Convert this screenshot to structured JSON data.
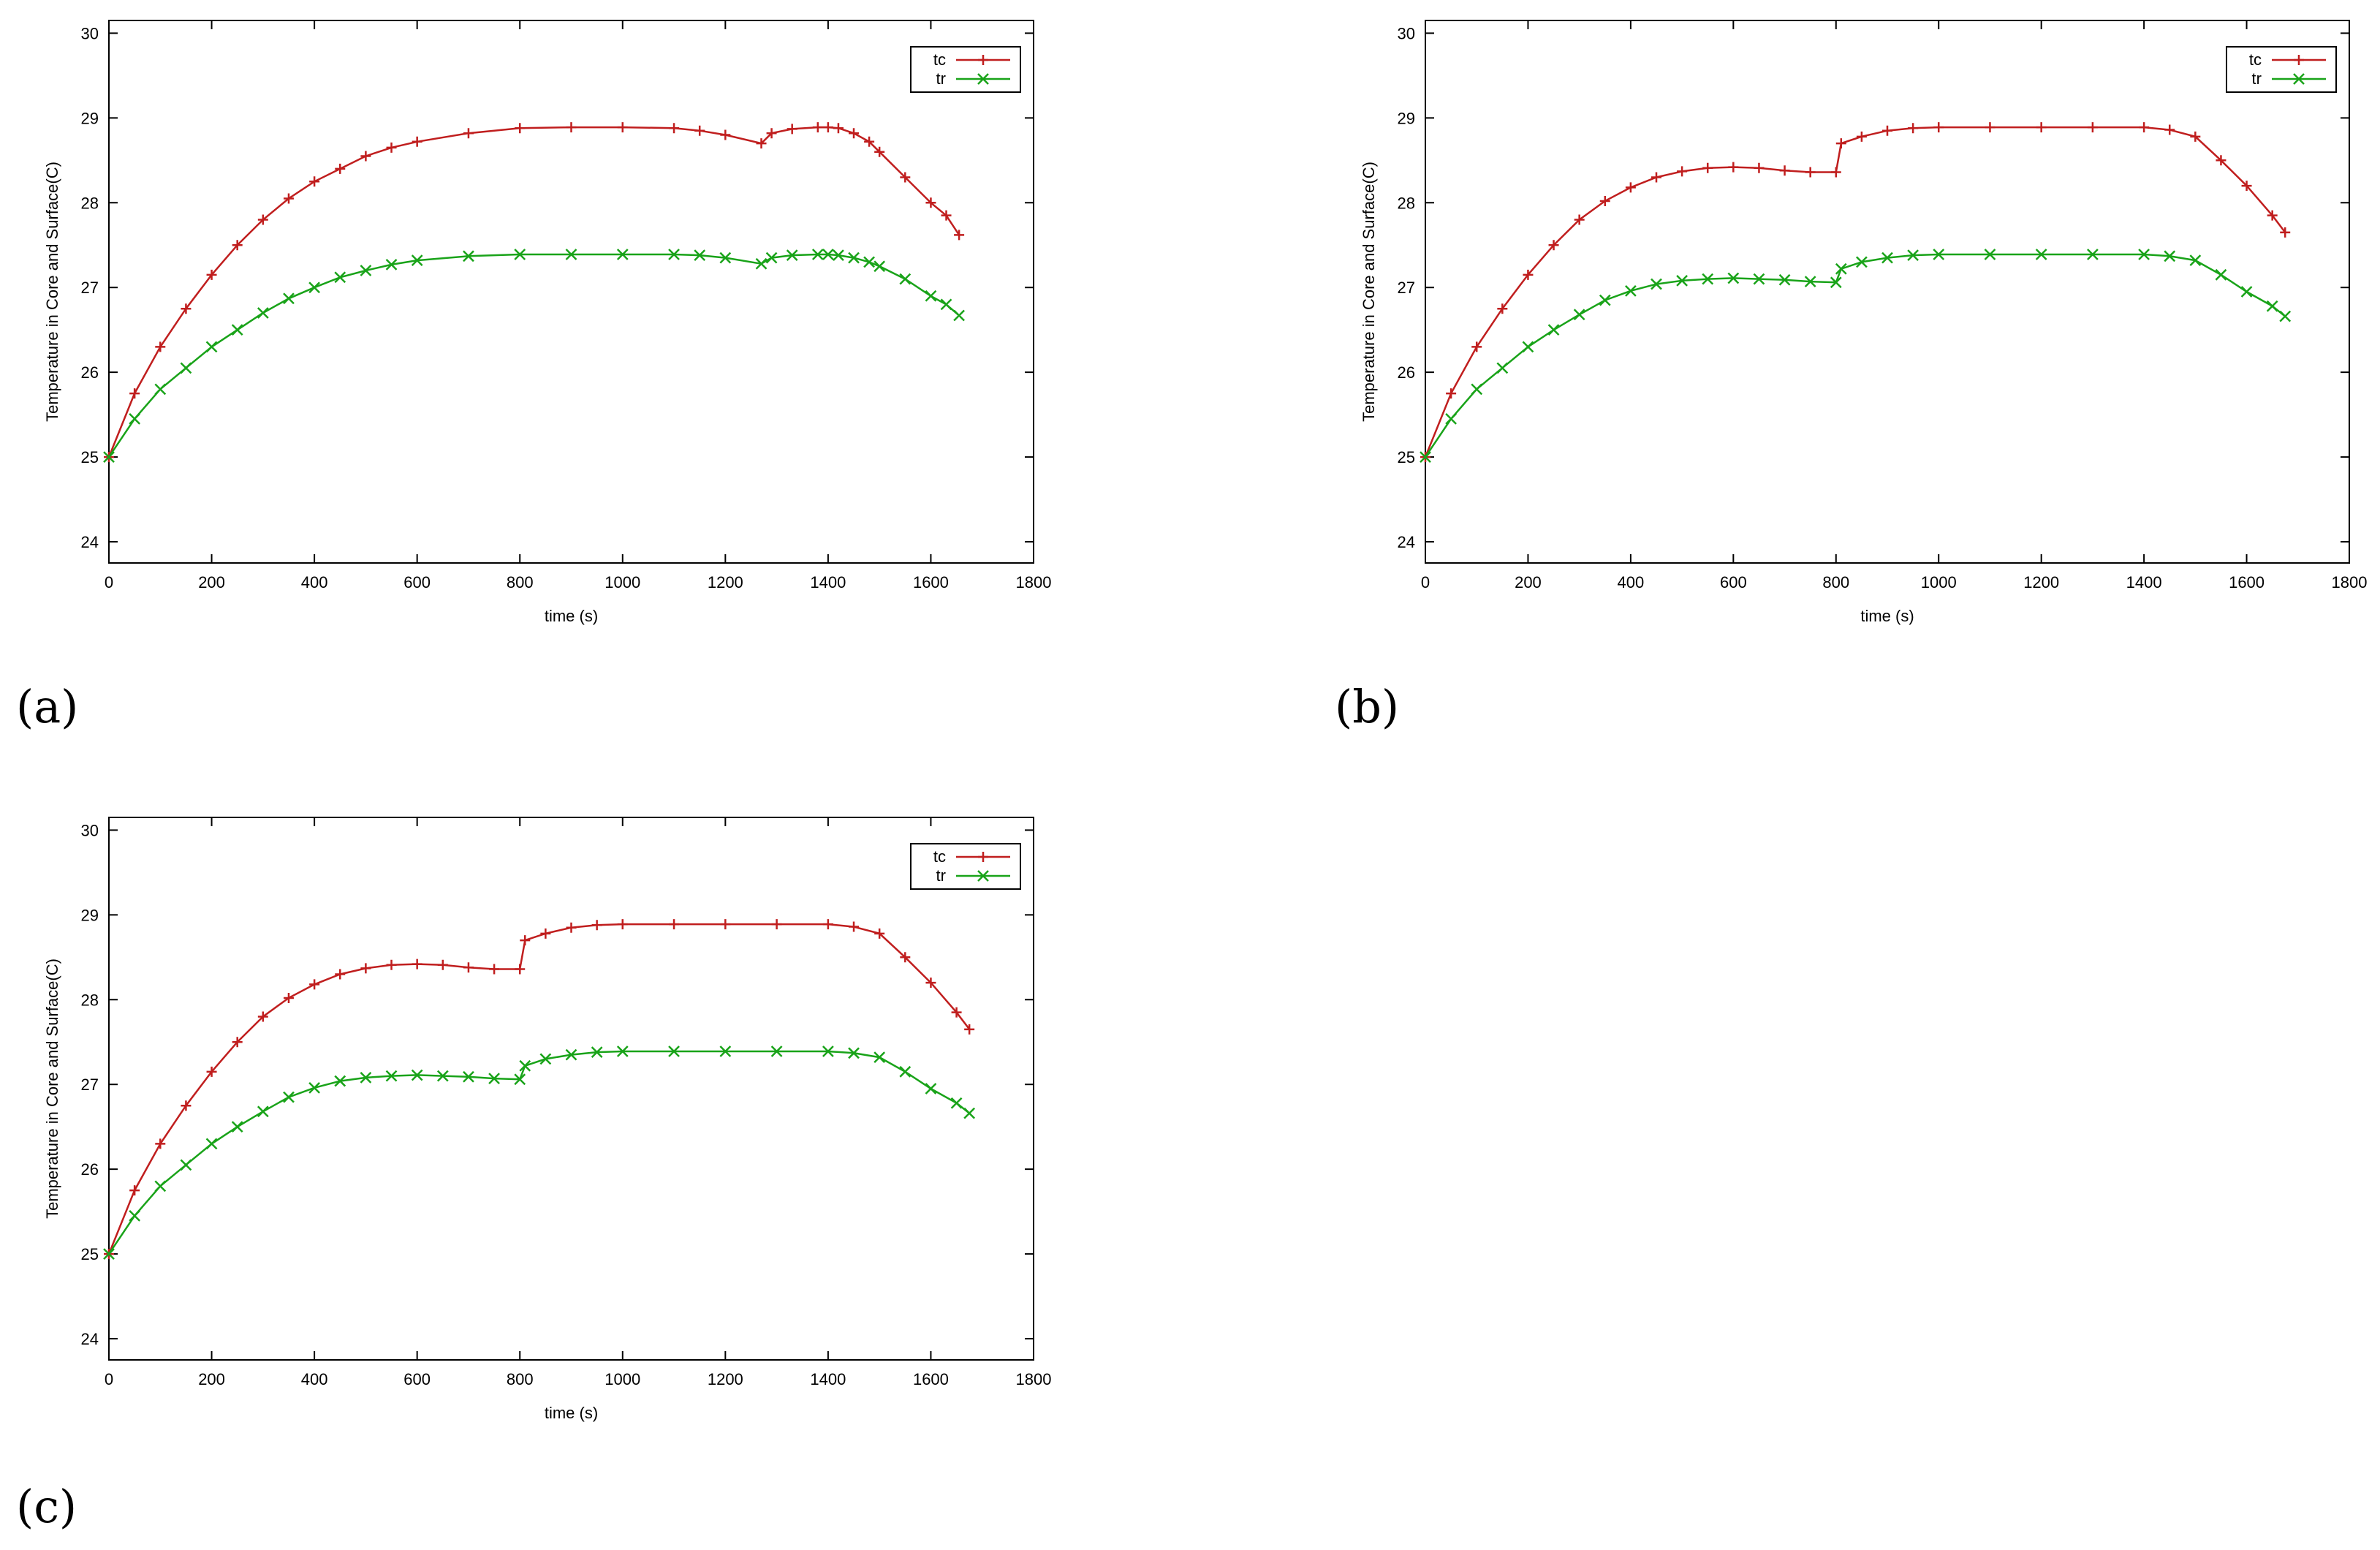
{
  "panels": [
    {
      "id": "a",
      "label": "(a)"
    },
    {
      "id": "b",
      "label": "(b)"
    },
    {
      "id": "c",
      "label": "(c)"
    }
  ],
  "colors": {
    "tc": "#c01e1e",
    "tr": "#19a319"
  },
  "chart_data": [
    {
      "type": "line",
      "panel": "(a)",
      "xlabel": "time (s)",
      "ylabel": "Temperature in Core and Surface(C)",
      "xlim": [
        0,
        1800
      ],
      "ylim": [
        23.75,
        30.15
      ],
      "xticks": [
        0,
        200,
        400,
        600,
        800,
        1000,
        1200,
        1400,
        1600,
        1800
      ],
      "yticks": [
        24,
        25,
        26,
        27,
        28,
        29,
        30
      ],
      "legend": "top-right",
      "grid": false,
      "series": [
        {
          "name": "tc",
          "marker": "plus",
          "x": [
            0,
            50,
            100,
            150,
            200,
            250,
            300,
            350,
            400,
            450,
            500,
            550,
            600,
            700,
            800,
            900,
            1000,
            1100,
            1150,
            1200,
            1270,
            1290,
            1330,
            1380,
            1400,
            1420,
            1450,
            1480,
            1500,
            1550,
            1600,
            1630,
            1655
          ],
          "y": [
            25.0,
            25.75,
            26.3,
            26.75,
            27.15,
            27.5,
            27.8,
            28.05,
            28.25,
            28.4,
            28.55,
            28.65,
            28.72,
            28.82,
            28.88,
            28.89,
            28.89,
            28.88,
            28.85,
            28.8,
            28.7,
            28.82,
            28.87,
            28.89,
            28.89,
            28.88,
            28.82,
            28.72,
            28.6,
            28.3,
            28.0,
            27.85,
            27.62
          ]
        },
        {
          "name": "tr",
          "marker": "x",
          "x": [
            0,
            50,
            100,
            150,
            200,
            250,
            300,
            350,
            400,
            450,
            500,
            550,
            600,
            700,
            800,
            900,
            1000,
            1100,
            1150,
            1200,
            1270,
            1290,
            1330,
            1380,
            1400,
            1420,
            1450,
            1480,
            1500,
            1550,
            1600,
            1630,
            1655
          ],
          "y": [
            25.0,
            25.45,
            25.8,
            26.05,
            26.3,
            26.5,
            26.7,
            26.87,
            27.0,
            27.12,
            27.2,
            27.27,
            27.32,
            27.37,
            27.39,
            27.39,
            27.39,
            27.39,
            27.38,
            27.35,
            27.28,
            27.35,
            27.38,
            27.39,
            27.39,
            27.38,
            27.35,
            27.3,
            27.25,
            27.1,
            26.9,
            26.8,
            26.67
          ]
        }
      ]
    },
    {
      "type": "line",
      "panel": "(b)",
      "xlabel": "time (s)",
      "ylabel": "Temperature in Core and Surface(C)",
      "xlim": [
        0,
        1800
      ],
      "ylim": [
        23.75,
        30.15
      ],
      "xticks": [
        0,
        200,
        400,
        600,
        800,
        1000,
        1200,
        1400,
        1600,
        1800
      ],
      "yticks": [
        24,
        25,
        26,
        27,
        28,
        29,
        30
      ],
      "legend": "top-right",
      "grid": false,
      "series": [
        {
          "name": "tc",
          "marker": "plus",
          "x": [
            0,
            50,
            100,
            150,
            200,
            250,
            300,
            350,
            400,
            450,
            500,
            550,
            600,
            650,
            700,
            750,
            800,
            810,
            850,
            900,
            950,
            1000,
            1100,
            1200,
            1300,
            1400,
            1450,
            1500,
            1550,
            1600,
            1650,
            1675
          ],
          "y": [
            25.0,
            25.75,
            26.3,
            26.75,
            27.15,
            27.5,
            27.8,
            28.02,
            28.18,
            28.3,
            28.37,
            28.41,
            28.42,
            28.41,
            28.38,
            28.36,
            28.36,
            28.7,
            28.78,
            28.85,
            28.88,
            28.89,
            28.89,
            28.89,
            28.89,
            28.89,
            28.86,
            28.78,
            28.5,
            28.2,
            27.85,
            27.65
          ]
        },
        {
          "name": "tr",
          "marker": "x",
          "x": [
            0,
            50,
            100,
            150,
            200,
            250,
            300,
            350,
            400,
            450,
            500,
            550,
            600,
            650,
            700,
            750,
            800,
            810,
            850,
            900,
            950,
            1000,
            1100,
            1200,
            1300,
            1400,
            1450,
            1500,
            1550,
            1600,
            1650,
            1675
          ],
          "y": [
            25.0,
            25.45,
            25.8,
            26.05,
            26.3,
            26.5,
            26.68,
            26.85,
            26.96,
            27.04,
            27.08,
            27.1,
            27.11,
            27.1,
            27.09,
            27.07,
            27.06,
            27.22,
            27.3,
            27.35,
            27.38,
            27.39,
            27.39,
            27.39,
            27.39,
            27.39,
            27.37,
            27.32,
            27.15,
            26.95,
            26.78,
            26.66
          ]
        }
      ]
    },
    {
      "type": "line",
      "panel": "(c)",
      "xlabel": "time (s)",
      "ylabel": "Temperature in Core and Surface(C)",
      "xlim": [
        0,
        1800
      ],
      "ylim": [
        23.75,
        30.15
      ],
      "xticks": [
        0,
        200,
        400,
        600,
        800,
        1000,
        1200,
        1400,
        1600,
        1800
      ],
      "yticks": [
        24,
        25,
        26,
        27,
        28,
        29,
        30
      ],
      "legend": "top-right",
      "grid": false,
      "series": [
        {
          "name": "tc",
          "marker": "plus",
          "x": [
            0,
            50,
            100,
            150,
            200,
            250,
            300,
            350,
            400,
            450,
            500,
            550,
            600,
            650,
            700,
            750,
            800,
            810,
            850,
            900,
            950,
            1000,
            1100,
            1200,
            1300,
            1400,
            1450,
            1500,
            1550,
            1600,
            1650,
            1675
          ],
          "y": [
            25.0,
            25.75,
            26.3,
            26.75,
            27.15,
            27.5,
            27.8,
            28.02,
            28.18,
            28.3,
            28.37,
            28.41,
            28.42,
            28.41,
            28.38,
            28.36,
            28.36,
            28.7,
            28.78,
            28.85,
            28.88,
            28.89,
            28.89,
            28.89,
            28.89,
            28.89,
            28.86,
            28.78,
            28.5,
            28.2,
            27.85,
            27.65
          ]
        },
        {
          "name": "tr",
          "marker": "x",
          "x": [
            0,
            50,
            100,
            150,
            200,
            250,
            300,
            350,
            400,
            450,
            500,
            550,
            600,
            650,
            700,
            750,
            800,
            810,
            850,
            900,
            950,
            1000,
            1100,
            1200,
            1300,
            1400,
            1450,
            1500,
            1550,
            1600,
            1650,
            1675
          ],
          "y": [
            25.0,
            25.45,
            25.8,
            26.05,
            26.3,
            26.5,
            26.68,
            26.85,
            26.96,
            27.04,
            27.08,
            27.1,
            27.11,
            27.1,
            27.09,
            27.07,
            27.06,
            27.22,
            27.3,
            27.35,
            27.38,
            27.39,
            27.39,
            27.39,
            27.39,
            27.39,
            27.37,
            27.32,
            27.15,
            26.95,
            26.78,
            26.66
          ]
        }
      ]
    }
  ]
}
